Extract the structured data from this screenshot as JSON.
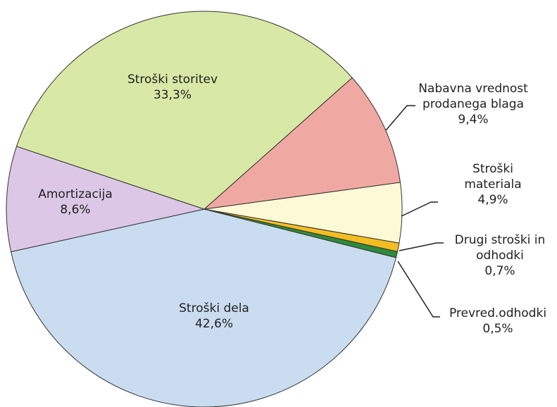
{
  "chart_data": {
    "type": "pie",
    "categories": [
      "Stroški storitev",
      "Nabavna vrednost prodanega blaga",
      "Stroški materiala",
      "Drugi stroški in odhodki",
      "Prevred.odhodki",
      "Stroški dela",
      "Amortizacija"
    ],
    "values": [
      33.3,
      9.4,
      4.9,
      0.7,
      0.5,
      42.6,
      8.6
    ],
    "value_labels": [
      "33,3%",
      "9,4%",
      "4,9%",
      "0,7%",
      "0,5%",
      "42,6%",
      "8,6%"
    ],
    "colors": [
      "#d8e8a6",
      "#f0a9a2",
      "#fcf9d6",
      "#f4be22",
      "#2f8a3c",
      "#cadcef",
      "#dcc7e6"
    ]
  }
}
